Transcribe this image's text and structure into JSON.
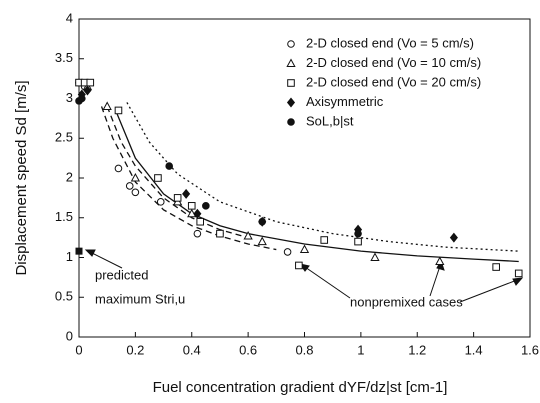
{
  "chart_data": {
    "type": "scatter",
    "xlabel": "Fuel concentration gradient dYF/dz|st  [cm-1]",
    "ylabel": "Displacement speed Sd  [m/s]",
    "xlim": [
      0,
      1.6
    ],
    "ylim": [
      0,
      4
    ],
    "xticks": [
      0,
      0.2,
      0.4,
      0.6,
      0.8,
      1,
      1.2,
      1.4,
      1.6
    ],
    "yticks": [
      0,
      0.5,
      1,
      1.5,
      2,
      2.5,
      3,
      3.5,
      4
    ],
    "series": [
      {
        "name": "2-D closed end (Vo = 5 cm/s)",
        "marker": "circle-open",
        "color": "#111",
        "x": [
          0,
          0.02,
          0.14,
          0.18,
          0.2,
          0.29,
          0.42,
          0.5,
          0.74
        ],
        "values": [
          3.2,
          3.15,
          2.12,
          1.9,
          1.82,
          1.7,
          1.3,
          1.3,
          1.07
        ]
      },
      {
        "name": "2-D closed end (Vo = 10 cm/s)",
        "marker": "triangle-open",
        "color": "#111",
        "x": [
          0.03,
          0.1,
          0.2,
          0.35,
          0.4,
          0.6,
          0.65,
          0.8,
          1.05,
          1.28
        ],
        "values": [
          3.15,
          2.9,
          2.0,
          1.7,
          1.55,
          1.27,
          1.2,
          1.1,
          1.0,
          0.95
        ]
      },
      {
        "name": "2-D closed end (Vo = 20 cm/s)",
        "marker": "square-open",
        "color": "#111",
        "x": [
          0,
          0.02,
          0.04,
          0.14,
          0.28,
          0.35,
          0.4,
          0.43,
          0.5,
          0.78,
          0.87,
          0.99,
          1.48,
          1.56
        ],
        "values": [
          3.2,
          3.2,
          3.2,
          2.85,
          2.0,
          1.75,
          1.65,
          1.45,
          1.3,
          0.9,
          1.22,
          1.2,
          0.88,
          0.8
        ]
      },
      {
        "name": "Axisymmetric",
        "marker": "diamond-filled",
        "color": "#111",
        "x": [
          0.01,
          0.03,
          0.38,
          0.42,
          0.65,
          0.99,
          1.33
        ],
        "values": [
          3.05,
          3.1,
          1.8,
          1.55,
          1.45,
          1.35,
          1.25
        ]
      },
      {
        "name": "SoL,b|st",
        "marker": "circle-filled",
        "color": "#111",
        "x": [
          0,
          0.01,
          0.32,
          0.45,
          0.65,
          0.99
        ],
        "values": [
          2.97,
          3.0,
          2.15,
          1.65,
          1.45,
          1.3
        ]
      }
    ],
    "curves": [
      {
        "style": "solid",
        "x": [
          0.13,
          0.2,
          0.3,
          0.4,
          0.5,
          0.6,
          0.8,
          1.0,
          1.2,
          1.4,
          1.56
        ],
        "values": [
          2.85,
          2.25,
          1.8,
          1.55,
          1.4,
          1.3,
          1.17,
          1.08,
          1.02,
          0.98,
          0.95
        ]
      },
      {
        "style": "dotted",
        "x": [
          0.17,
          0.25,
          0.35,
          0.5,
          0.7,
          0.9,
          1.1,
          1.3,
          1.56
        ],
        "values": [
          2.95,
          2.45,
          2.05,
          1.7,
          1.45,
          1.3,
          1.2,
          1.13,
          1.08
        ]
      },
      {
        "style": "dashed",
        "x": [
          0.1,
          0.15,
          0.2,
          0.3,
          0.4,
          0.5,
          0.6
        ],
        "values": [
          2.9,
          2.45,
          2.15,
          1.75,
          1.5,
          1.35,
          1.25
        ]
      },
      {
        "style": "dashed",
        "x": [
          0.08,
          0.12,
          0.2,
          0.3,
          0.4,
          0.5,
          0.6,
          0.7
        ],
        "values": [
          2.9,
          2.5,
          1.95,
          1.6,
          1.4,
          1.27,
          1.17,
          1.1
        ]
      }
    ],
    "predicted_point": {
      "x": 0,
      "y": 1.08
    },
    "annotations": [
      "predicted",
      "maximum Stri,u",
      "nonpremixed cases"
    ]
  }
}
